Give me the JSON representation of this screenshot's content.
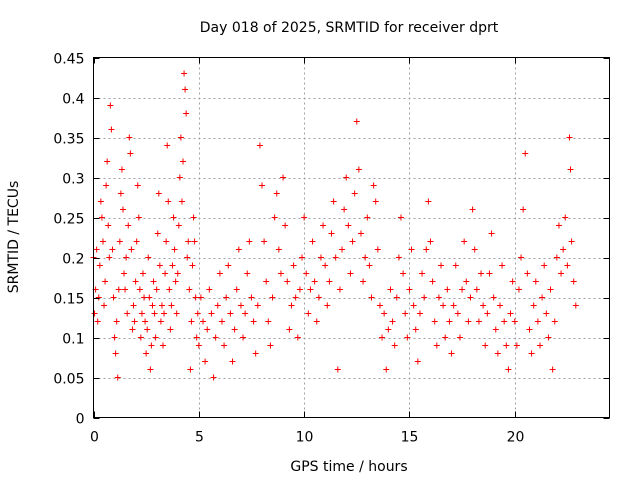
{
  "chart_data": {
    "type": "scatter",
    "title": "Day 018 of 2025, SRMTID for receiver dprt",
    "xlabel": "GPS time / hours",
    "ylabel": "SRMTID / TECUs",
    "xlim": [
      0,
      24.5
    ],
    "ylim": [
      0,
      0.45
    ],
    "xticks": [
      0,
      5,
      10,
      15,
      20
    ],
    "xtick_labels": [
      "0",
      "5",
      "10",
      "15",
      "20"
    ],
    "yticks": [
      0,
      0.05,
      0.1,
      0.15,
      0.2,
      0.25,
      0.3,
      0.35,
      0.4,
      0.45
    ],
    "ytick_labels": [
      "0",
      "0.05",
      "0.1",
      "0.15",
      "0.2",
      "0.25",
      "0.3",
      "0.35",
      "0.4",
      "0.45"
    ],
    "grid": true,
    "marker": "plus",
    "color": "#ff0000",
    "series": [
      {
        "name": "SRMTID",
        "points": [
          [
            0.0,
            0.2
          ],
          [
            0.05,
            0.13
          ],
          [
            0.1,
            0.16
          ],
          [
            0.15,
            0.21
          ],
          [
            0.2,
            0.12
          ],
          [
            0.25,
            0.15
          ],
          [
            0.3,
            0.19
          ],
          [
            0.35,
            0.27
          ],
          [
            0.4,
            0.25
          ],
          [
            0.45,
            0.22
          ],
          [
            0.5,
            0.14
          ],
          [
            0.55,
            0.17
          ],
          [
            0.6,
            0.29
          ],
          [
            0.65,
            0.32
          ],
          [
            0.7,
            0.24
          ],
          [
            0.75,
            0.2
          ],
          [
            0.8,
            0.39
          ],
          [
            0.85,
            0.36
          ],
          [
            0.9,
            0.21
          ],
          [
            0.95,
            0.15
          ],
          [
            1.0,
            0.1
          ],
          [
            1.05,
            0.08
          ],
          [
            1.1,
            0.12
          ],
          [
            1.15,
            0.05
          ],
          [
            1.2,
            0.16
          ],
          [
            1.25,
            0.22
          ],
          [
            1.3,
            0.28
          ],
          [
            1.35,
            0.31
          ],
          [
            1.4,
            0.26
          ],
          [
            1.45,
            0.18
          ],
          [
            1.5,
            0.16
          ],
          [
            1.55,
            0.2
          ],
          [
            1.6,
            0.13
          ],
          [
            1.65,
            0.24
          ],
          [
            1.7,
            0.35
          ],
          [
            1.75,
            0.33
          ],
          [
            1.8,
            0.21
          ],
          [
            1.85,
            0.11
          ],
          [
            1.9,
            0.14
          ],
          [
            1.95,
            0.12
          ],
          [
            2.0,
            0.17
          ],
          [
            2.05,
            0.22
          ],
          [
            2.1,
            0.29
          ],
          [
            2.15,
            0.25
          ],
          [
            2.2,
            0.16
          ],
          [
            2.25,
            0.1
          ],
          [
            2.3,
            0.13
          ],
          [
            2.35,
            0.18
          ],
          [
            2.4,
            0.15
          ],
          [
            2.45,
            0.12
          ],
          [
            2.5,
            0.08
          ],
          [
            2.55,
            0.11
          ],
          [
            2.6,
            0.2
          ],
          [
            2.65,
            0.15
          ],
          [
            2.7,
            0.06
          ],
          [
            2.75,
            0.09
          ],
          [
            2.8,
            0.14
          ],
          [
            2.85,
            0.17
          ],
          [
            2.9,
            0.13
          ],
          [
            2.95,
            0.1
          ],
          [
            3.0,
            0.16
          ],
          [
            3.05,
            0.23
          ],
          [
            3.1,
            0.28
          ],
          [
            3.15,
            0.19
          ],
          [
            3.2,
            0.12
          ],
          [
            3.25,
            0.14
          ],
          [
            3.3,
            0.09
          ],
          [
            3.35,
            0.13
          ],
          [
            3.4,
            0.18
          ],
          [
            3.45,
            0.22
          ],
          [
            3.5,
            0.34
          ],
          [
            3.55,
            0.27
          ],
          [
            3.6,
            0.16
          ],
          [
            3.65,
            0.11
          ],
          [
            3.7,
            0.14
          ],
          [
            3.75,
            0.19
          ],
          [
            3.8,
            0.25
          ],
          [
            3.85,
            0.21
          ],
          [
            3.9,
            0.17
          ],
          [
            3.95,
            0.13
          ],
          [
            4.0,
            0.18
          ],
          [
            4.05,
            0.24
          ],
          [
            4.1,
            0.3
          ],
          [
            4.15,
            0.35
          ],
          [
            4.2,
            0.27
          ],
          [
            4.25,
            0.32
          ],
          [
            4.3,
            0.43
          ],
          [
            4.35,
            0.41
          ],
          [
            4.4,
            0.38
          ],
          [
            4.45,
            0.2
          ],
          [
            4.5,
            0.22
          ],
          [
            4.55,
            0.16
          ],
          [
            4.6,
            0.06
          ],
          [
            4.65,
            0.12
          ],
          [
            4.7,
            0.19
          ],
          [
            4.75,
            0.25
          ],
          [
            4.8,
            0.22
          ],
          [
            4.85,
            0.15
          ],
          [
            4.9,
            0.1
          ],
          [
            4.95,
            0.13
          ],
          [
            5.0,
            0.09
          ],
          [
            5.1,
            0.15
          ],
          [
            5.2,
            0.12
          ],
          [
            5.3,
            0.07
          ],
          [
            5.4,
            0.11
          ],
          [
            5.5,
            0.16
          ],
          [
            5.6,
            0.13
          ],
          [
            5.7,
            0.05
          ],
          [
            5.8,
            0.1
          ],
          [
            5.9,
            0.14
          ],
          [
            6.0,
            0.18
          ],
          [
            6.1,
            0.12
          ],
          [
            6.2,
            0.09
          ],
          [
            6.3,
            0.15
          ],
          [
            6.4,
            0.19
          ],
          [
            6.5,
            0.13
          ],
          [
            6.6,
            0.07
          ],
          [
            6.7,
            0.11
          ],
          [
            6.8,
            0.16
          ],
          [
            6.9,
            0.21
          ],
          [
            7.0,
            0.14
          ],
          [
            7.1,
            0.1
          ],
          [
            7.2,
            0.13
          ],
          [
            7.3,
            0.18
          ],
          [
            7.4,
            0.22
          ],
          [
            7.5,
            0.15
          ],
          [
            7.6,
            0.12
          ],
          [
            7.7,
            0.08
          ],
          [
            7.8,
            0.14
          ],
          [
            7.9,
            0.34
          ],
          [
            8.0,
            0.29
          ],
          [
            8.1,
            0.22
          ],
          [
            8.2,
            0.17
          ],
          [
            8.3,
            0.12
          ],
          [
            8.4,
            0.09
          ],
          [
            8.5,
            0.15
          ],
          [
            8.6,
            0.25
          ],
          [
            8.7,
            0.28
          ],
          [
            8.8,
            0.21
          ],
          [
            8.9,
            0.18
          ],
          [
            9.0,
            0.3
          ],
          [
            9.1,
            0.24
          ],
          [
            9.2,
            0.17
          ],
          [
            9.3,
            0.11
          ],
          [
            9.4,
            0.14
          ],
          [
            9.5,
            0.19
          ],
          [
            9.6,
            0.15
          ],
          [
            9.7,
            0.1
          ],
          [
            9.8,
            0.16
          ],
          [
            9.9,
            0.2
          ],
          [
            10.0,
            0.25
          ],
          [
            10.1,
            0.18
          ],
          [
            10.2,
            0.13
          ],
          [
            10.3,
            0.16
          ],
          [
            10.4,
            0.22
          ],
          [
            10.5,
            0.17
          ],
          [
            10.6,
            0.12
          ],
          [
            10.7,
            0.15
          ],
          [
            10.8,
            0.2
          ],
          [
            10.9,
            0.24
          ],
          [
            11.0,
            0.19
          ],
          [
            11.1,
            0.14
          ],
          [
            11.2,
            0.17
          ],
          [
            11.3,
            0.23
          ],
          [
            11.4,
            0.27
          ],
          [
            11.5,
            0.2
          ],
          [
            11.6,
            0.06
          ],
          [
            11.7,
            0.16
          ],
          [
            11.8,
            0.21
          ],
          [
            11.9,
            0.26
          ],
          [
            12.0,
            0.3
          ],
          [
            12.1,
            0.24
          ],
          [
            12.2,
            0.18
          ],
          [
            12.3,
            0.22
          ],
          [
            12.4,
            0.28
          ],
          [
            12.5,
            0.37
          ],
          [
            12.6,
            0.31
          ],
          [
            12.7,
            0.23
          ],
          [
            12.8,
            0.17
          ],
          [
            12.9,
            0.2
          ],
          [
            13.0,
            0.25
          ],
          [
            13.1,
            0.19
          ],
          [
            13.2,
            0.15
          ],
          [
            13.3,
            0.29
          ],
          [
            13.4,
            0.27
          ],
          [
            13.5,
            0.21
          ],
          [
            13.6,
            0.14
          ],
          [
            13.7,
            0.1
          ],
          [
            13.8,
            0.13
          ],
          [
            13.9,
            0.06
          ],
          [
            14.0,
            0.11
          ],
          [
            14.1,
            0.16
          ],
          [
            14.2,
            0.12
          ],
          [
            14.3,
            0.09
          ],
          [
            14.4,
            0.15
          ],
          [
            14.5,
            0.2
          ],
          [
            14.6,
            0.25
          ],
          [
            14.7,
            0.18
          ],
          [
            14.8,
            0.13
          ],
          [
            14.9,
            0.1
          ],
          [
            15.0,
            0.16
          ],
          [
            15.1,
            0.21
          ],
          [
            15.2,
            0.14
          ],
          [
            15.3,
            0.11
          ],
          [
            15.4,
            0.07
          ],
          [
            15.5,
            0.13
          ],
          [
            15.6,
            0.18
          ],
          [
            15.7,
            0.15
          ],
          [
            15.8,
            0.21
          ],
          [
            15.9,
            0.27
          ],
          [
            16.0,
            0.22
          ],
          [
            16.1,
            0.17
          ],
          [
            16.2,
            0.12
          ],
          [
            16.3,
            0.09
          ],
          [
            16.4,
            0.15
          ],
          [
            16.5,
            0.19
          ],
          [
            16.6,
            0.14
          ],
          [
            16.7,
            0.1
          ],
          [
            16.8,
            0.16
          ],
          [
            16.9,
            0.12
          ],
          [
            17.0,
            0.08
          ],
          [
            17.1,
            0.14
          ],
          [
            17.2,
            0.19
          ],
          [
            17.3,
            0.13
          ],
          [
            17.4,
            0.1
          ],
          [
            17.5,
            0.16
          ],
          [
            17.6,
            0.22
          ],
          [
            17.7,
            0.17
          ],
          [
            17.8,
            0.12
          ],
          [
            17.9,
            0.15
          ],
          [
            18.0,
            0.26
          ],
          [
            18.1,
            0.21
          ],
          [
            18.2,
            0.16
          ],
          [
            18.3,
            0.12
          ],
          [
            18.4,
            0.18
          ],
          [
            18.5,
            0.14
          ],
          [
            18.6,
            0.09
          ],
          [
            18.7,
            0.13
          ],
          [
            18.8,
            0.18
          ],
          [
            18.9,
            0.23
          ],
          [
            19.0,
            0.15
          ],
          [
            19.1,
            0.11
          ],
          [
            19.2,
            0.08
          ],
          [
            19.3,
            0.14
          ],
          [
            19.4,
            0.19
          ],
          [
            19.5,
            0.12
          ],
          [
            19.6,
            0.09
          ],
          [
            19.7,
            0.06
          ],
          [
            19.8,
            0.13
          ],
          [
            19.9,
            0.17
          ],
          [
            20.0,
            0.12
          ],
          [
            20.1,
            0.09
          ],
          [
            20.2,
            0.16
          ],
          [
            20.3,
            0.2
          ],
          [
            20.4,
            0.26
          ],
          [
            20.5,
            0.33
          ],
          [
            20.6,
            0.18
          ],
          [
            20.7,
            0.11
          ],
          [
            20.8,
            0.08
          ],
          [
            20.9,
            0.14
          ],
          [
            21.0,
            0.17
          ],
          [
            21.1,
            0.12
          ],
          [
            21.2,
            0.09
          ],
          [
            21.3,
            0.15
          ],
          [
            21.4,
            0.19
          ],
          [
            21.5,
            0.13
          ],
          [
            21.6,
            0.1
          ],
          [
            21.7,
            0.16
          ],
          [
            21.8,
            0.06
          ],
          [
            21.9,
            0.12
          ],
          [
            22.0,
            0.2
          ],
          [
            22.1,
            0.24
          ],
          [
            22.2,
            0.18
          ],
          [
            22.3,
            0.21
          ],
          [
            22.4,
            0.25
          ],
          [
            22.5,
            0.19
          ],
          [
            22.6,
            0.35
          ],
          [
            22.65,
            0.31
          ],
          [
            22.7,
            0.22
          ],
          [
            22.8,
            0.17
          ],
          [
            22.9,
            0.14
          ]
        ]
      }
    ]
  }
}
